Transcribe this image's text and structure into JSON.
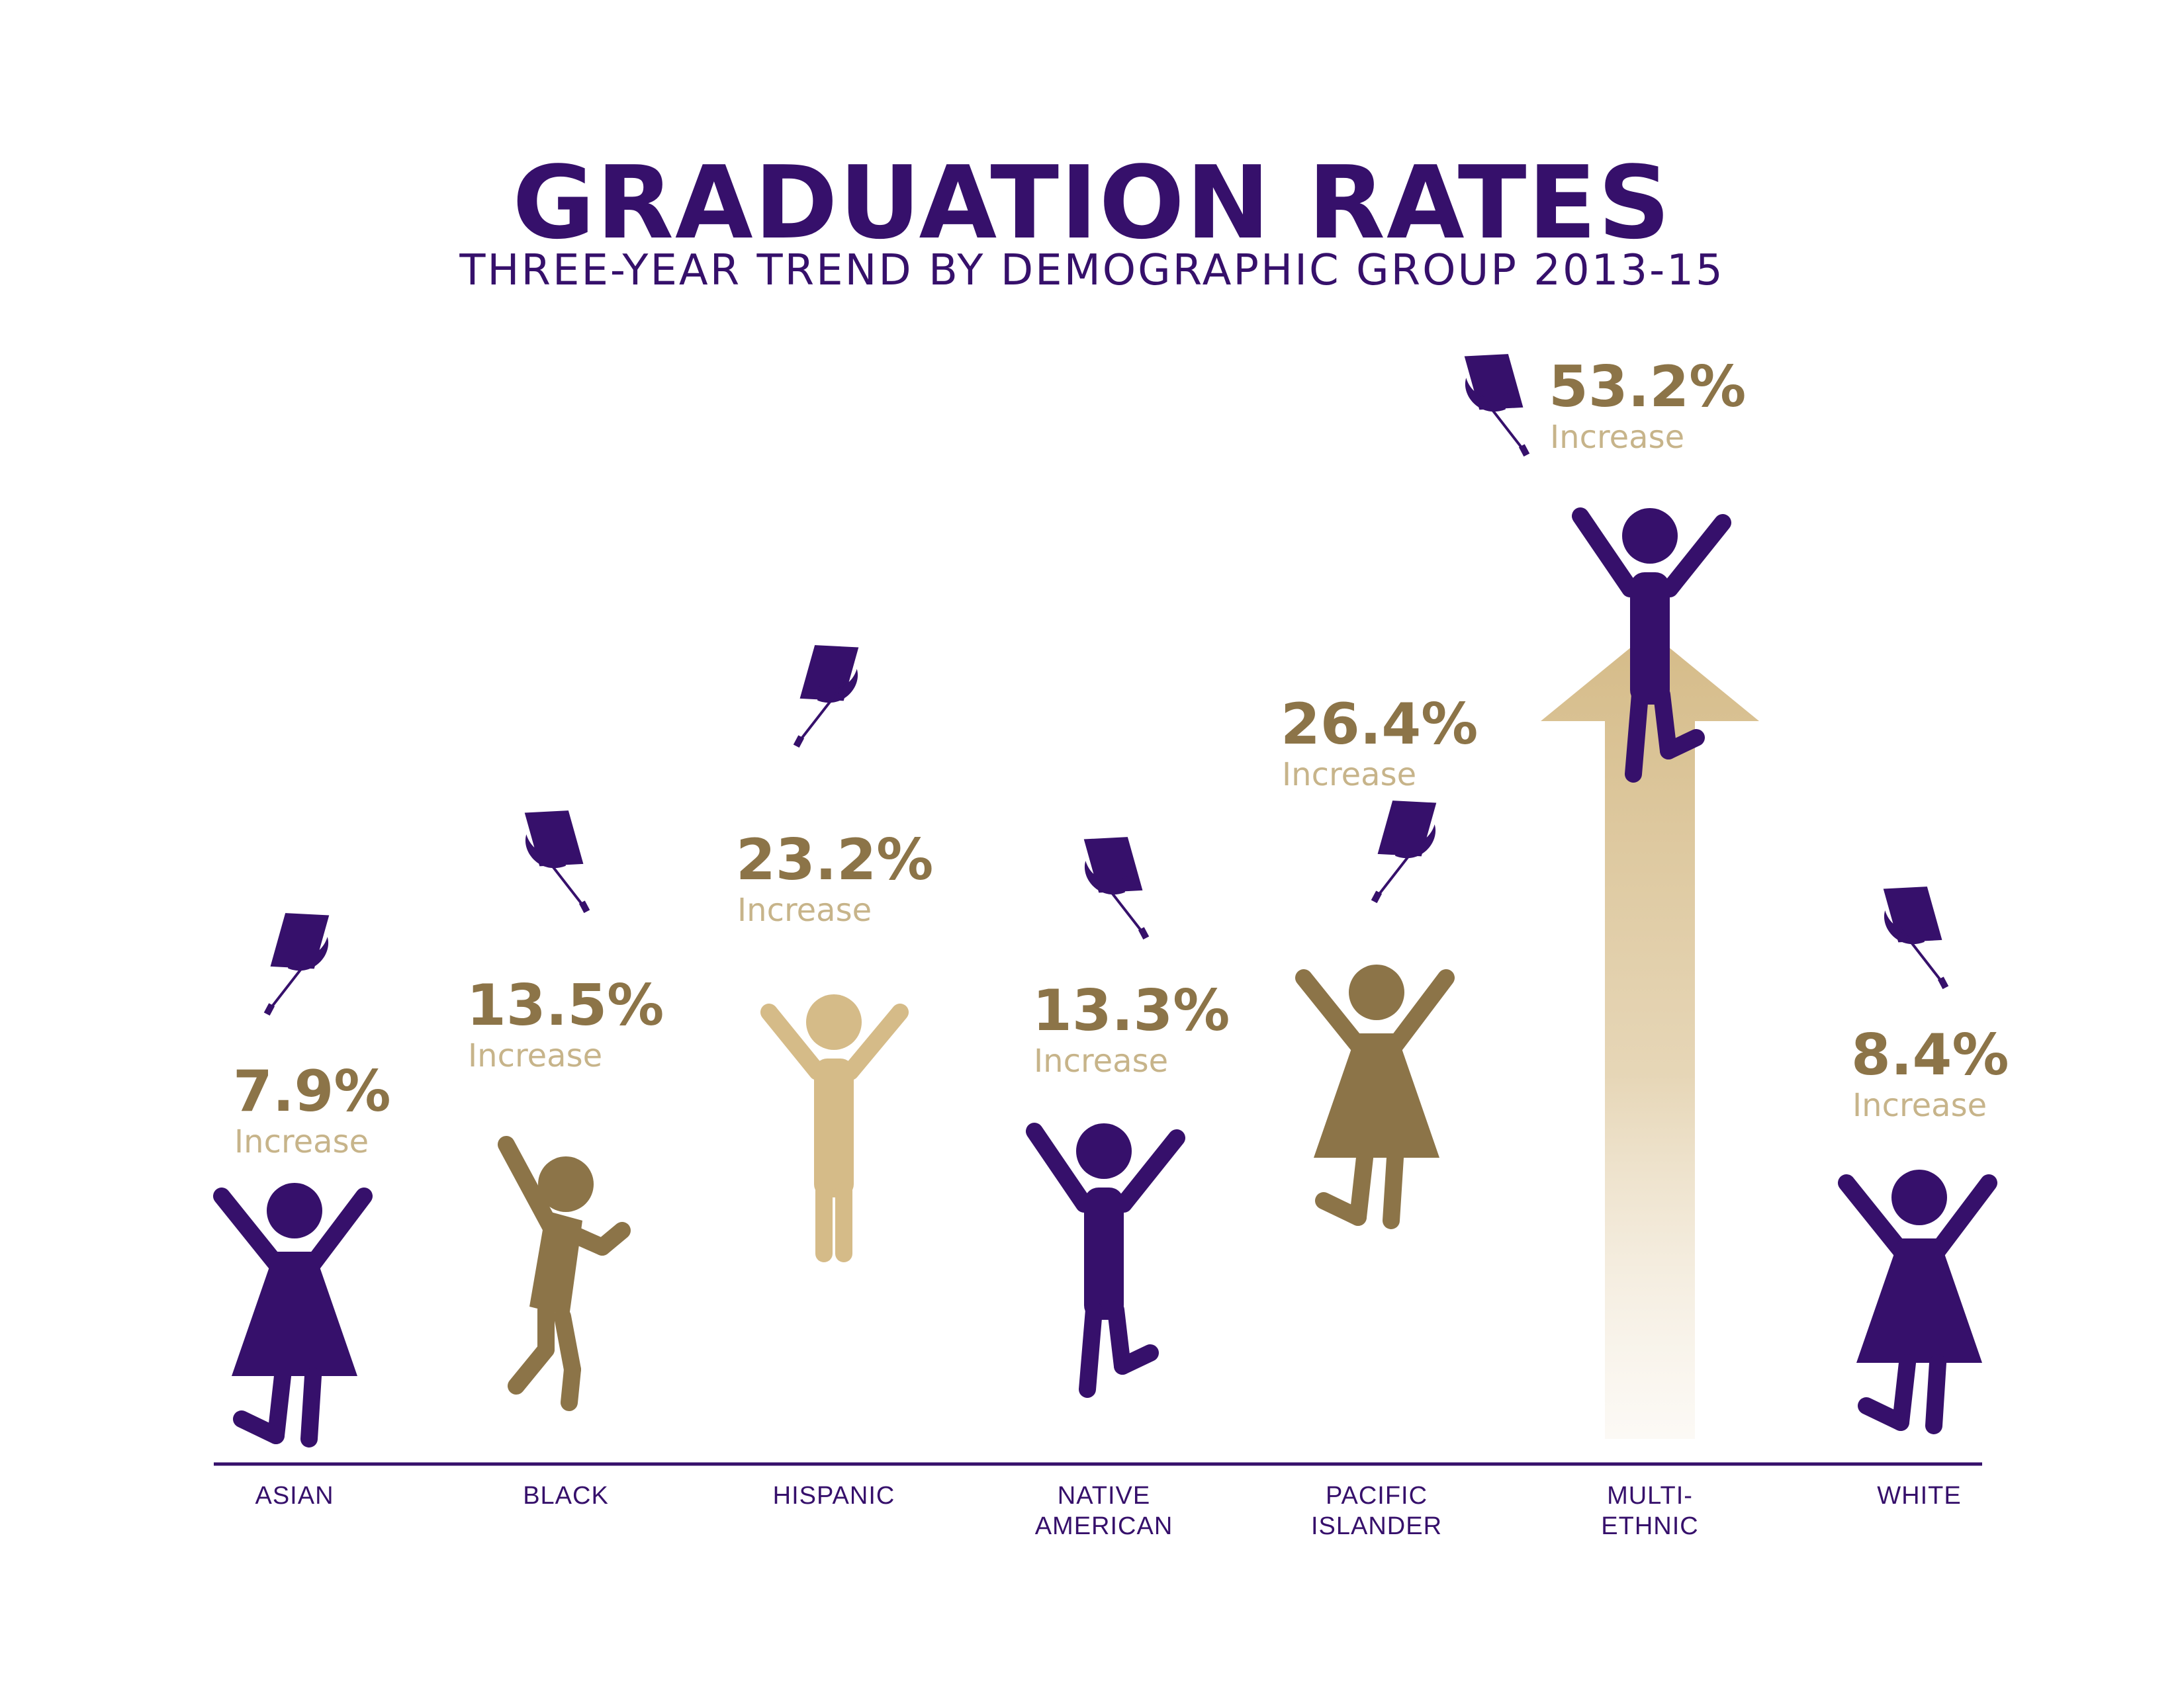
{
  "colors": {
    "purple": "#36106b",
    "brown": "#8c7448",
    "tan": "#d5bb88",
    "light_tan": "#c7b48a"
  },
  "chart_data": {
    "type": "bar",
    "title": "GRADUATION RATES",
    "subtitle": "THREE-YEAR TREND BY DEMOGRAPHIC GROUP 2013-15",
    "categories": [
      {
        "label_lines": [
          "ASIAN"
        ],
        "value": 7.9,
        "value_label": "7.9%",
        "sub_label": "Increase",
        "figure_color": "purple",
        "figure": "dress"
      },
      {
        "label_lines": [
          "BLACK"
        ],
        "value": 13.5,
        "value_label": "13.5%",
        "sub_label": "Increase",
        "figure_color": "brown",
        "figure": "dance"
      },
      {
        "label_lines": [
          "HISPANIC"
        ],
        "value": 23.2,
        "value_label": "23.2%",
        "sub_label": "Increase",
        "figure_color": "tan",
        "figure": "stand"
      },
      {
        "label_lines": [
          "NATIVE",
          "AMERICAN"
        ],
        "value": 13.3,
        "value_label": "13.3%",
        "sub_label": "Increase",
        "figure_color": "purple",
        "figure": "jump"
      },
      {
        "label_lines": [
          "PACIFIC",
          "ISLANDER"
        ],
        "value": 26.4,
        "value_label": "26.4%",
        "sub_label": "Increase",
        "figure_color": "brown",
        "figure": "dress"
      },
      {
        "label_lines": [
          "MULTI-",
          "ETHNIC"
        ],
        "value": 53.2,
        "value_label": "53.2%",
        "sub_label": "Increase",
        "figure_color": "purple",
        "figure": "jump",
        "highlight_arrow": true
      },
      {
        "label_lines": [
          "WHITE"
        ],
        "value": 8.4,
        "value_label": "8.4%",
        "sub_label": "Increase",
        "figure_color": "purple",
        "figure": "dress"
      }
    ],
    "unit": "%",
    "grid": false
  }
}
